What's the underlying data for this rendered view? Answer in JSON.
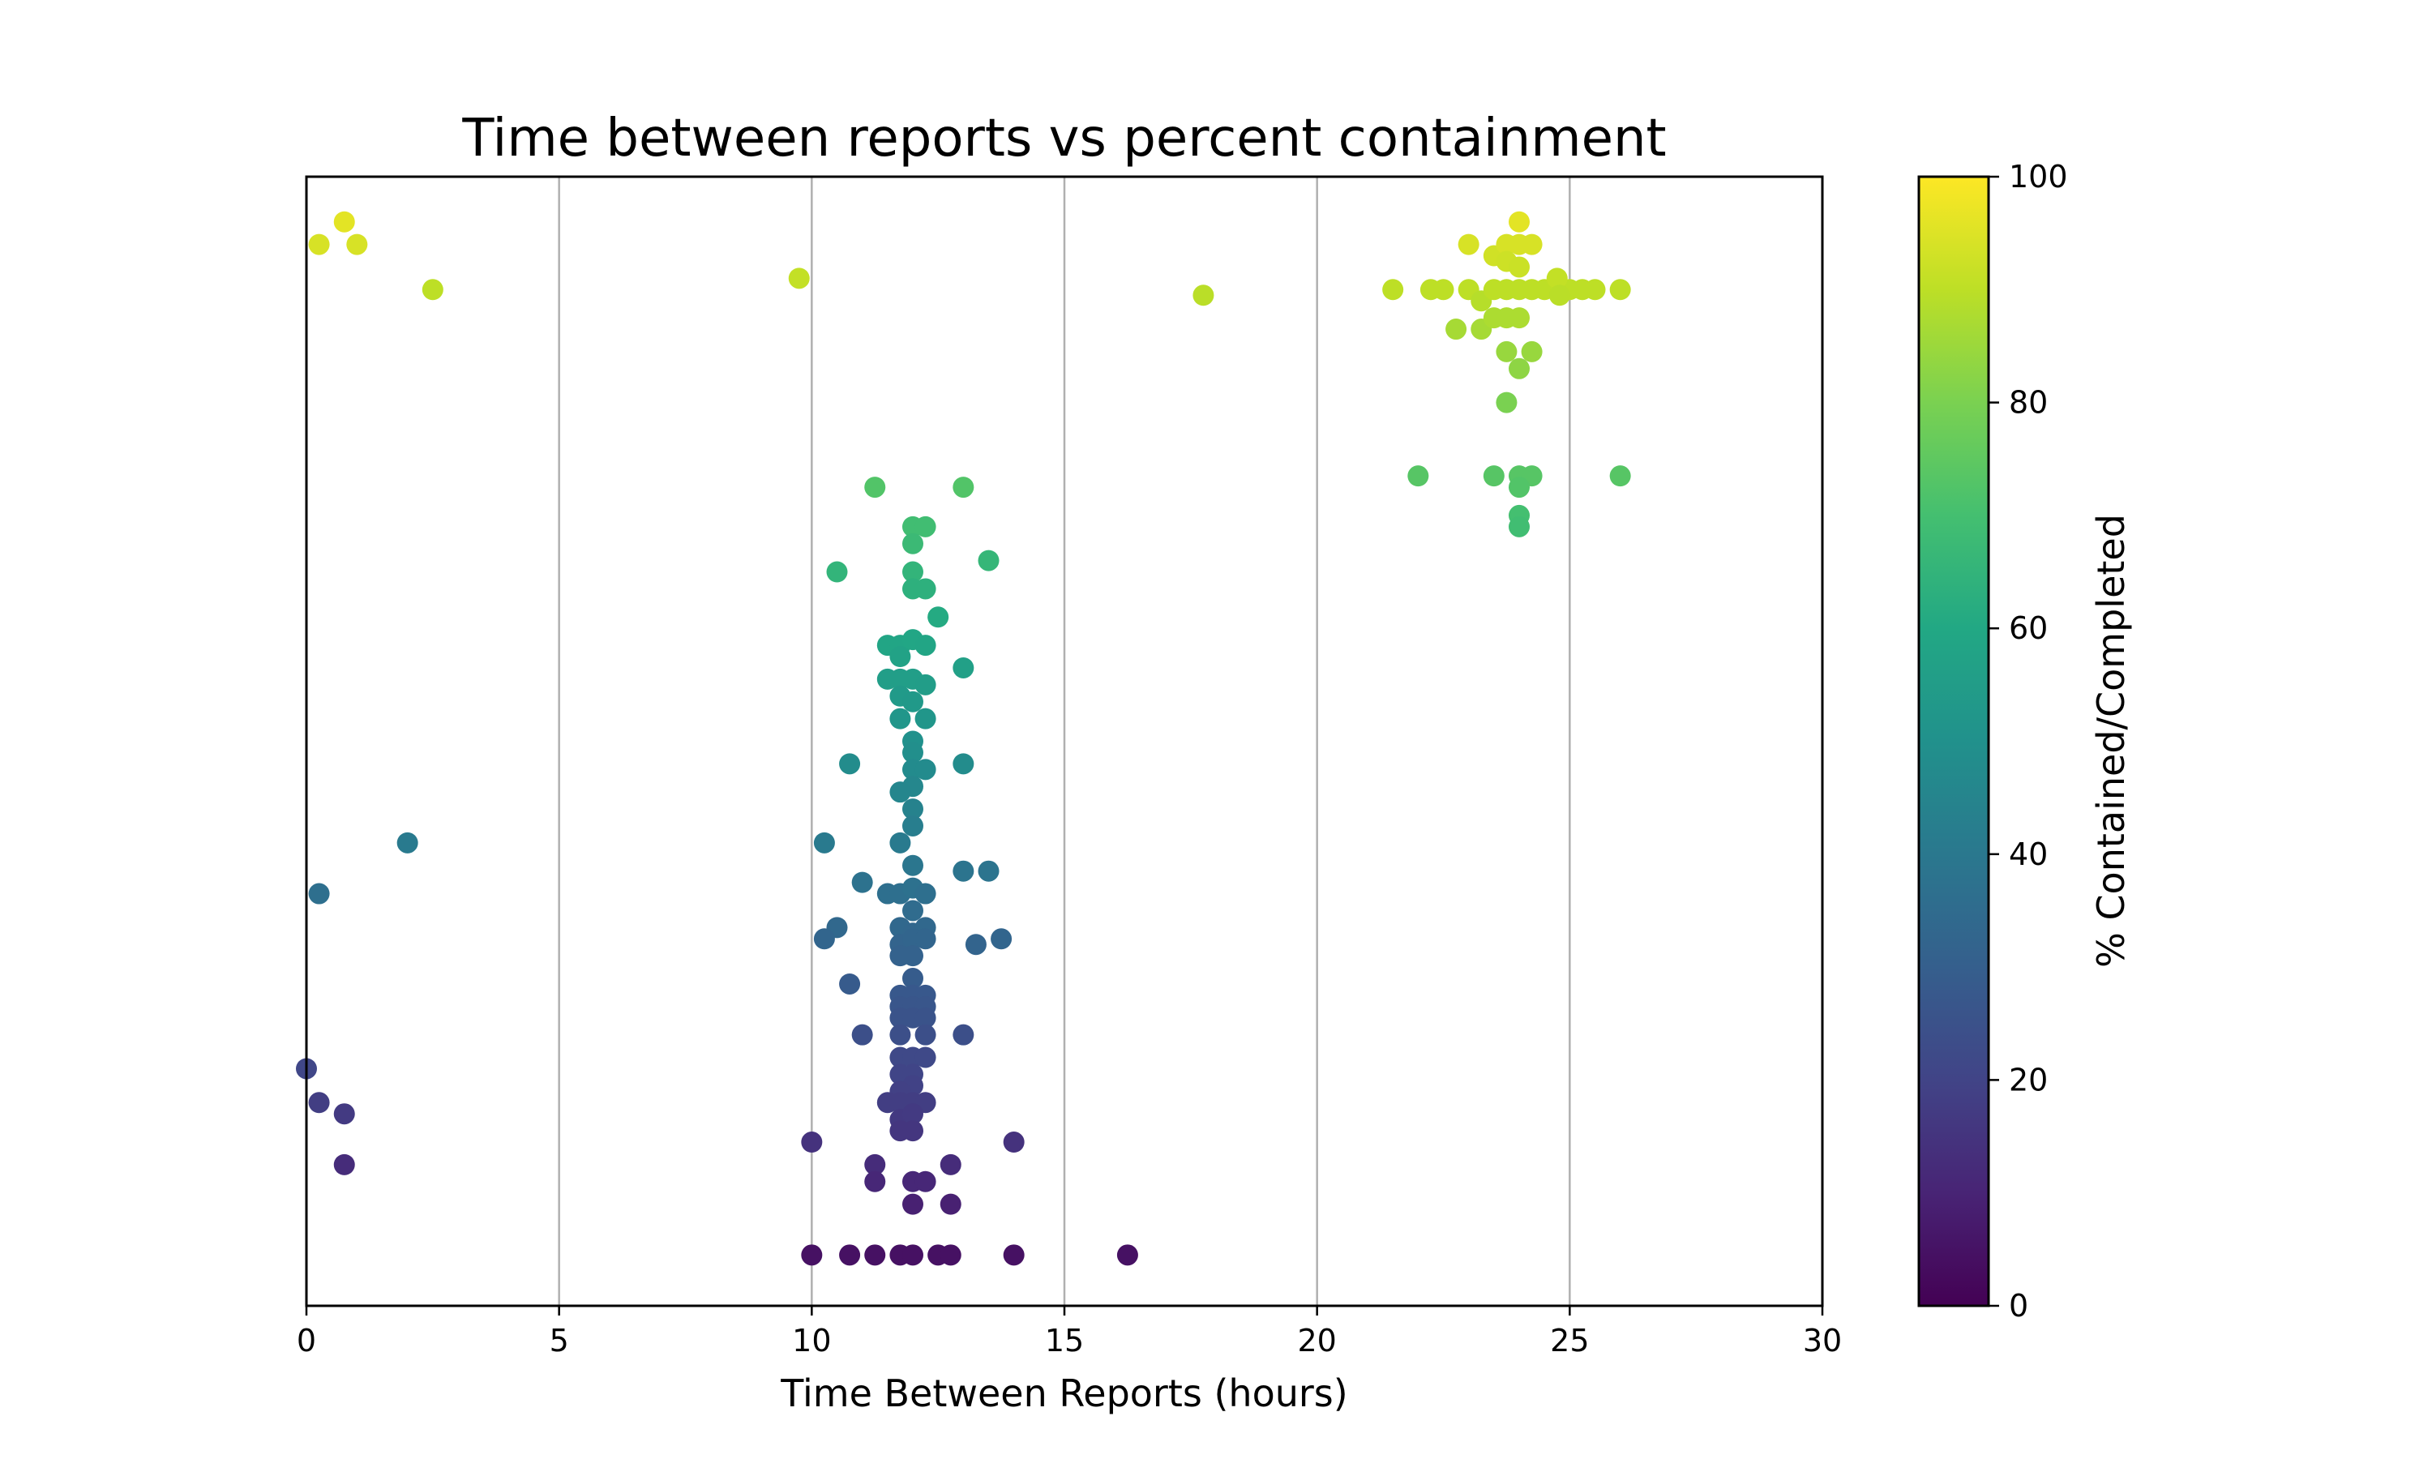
{
  "chart_data": {
    "type": "scatter",
    "title": "Time between reports vs percent containment",
    "xlabel": "Time Between Reports (hours)",
    "ylabel": "",
    "xlim": [
      0,
      30
    ],
    "ylim": [
      0,
      100
    ],
    "x_ticks": [
      "0",
      "5",
      "10",
      "15",
      "20",
      "25",
      "30"
    ],
    "grid": "vertical",
    "colorbar": {
      "label": "% Contained/Completed",
      "range": [
        0,
        100
      ],
      "ticks": [
        "0",
        "20",
        "40",
        "60",
        "80",
        "100"
      ],
      "colormap": "viridis"
    },
    "points": [
      {
        "x": 0.25,
        "y": 94
      },
      {
        "x": 0.75,
        "y": 96
      },
      {
        "x": 1.0,
        "y": 94
      },
      {
        "x": 2.5,
        "y": 90
      },
      {
        "x": 0.25,
        "y": 36.5
      },
      {
        "x": 2.0,
        "y": 41
      },
      {
        "x": 0.0,
        "y": 21
      },
      {
        "x": 0.25,
        "y": 18
      },
      {
        "x": 0.75,
        "y": 17
      },
      {
        "x": 0.75,
        "y": 12.5
      },
      {
        "x": 9.75,
        "y": 91
      },
      {
        "x": 17.75,
        "y": 89.5
      },
      {
        "x": 21.5,
        "y": 90
      },
      {
        "x": 22.25,
        "y": 90
      },
      {
        "x": 22.5,
        "y": 90
      },
      {
        "x": 23.0,
        "y": 90
      },
      {
        "x": 23.25,
        "y": 89
      },
      {
        "x": 23.5,
        "y": 90
      },
      {
        "x": 23.75,
        "y": 90
      },
      {
        "x": 24.0,
        "y": 90
      },
      {
        "x": 24.25,
        "y": 90
      },
      {
        "x": 24.5,
        "y": 90
      },
      {
        "x": 24.75,
        "y": 90
      },
      {
        "x": 25.0,
        "y": 90
      },
      {
        "x": 25.25,
        "y": 90
      },
      {
        "x": 25.5,
        "y": 90
      },
      {
        "x": 26.0,
        "y": 90
      },
      {
        "x": 24.75,
        "y": 91
      },
      {
        "x": 24.8,
        "y": 89.5
      },
      {
        "x": 23.0,
        "y": 94
      },
      {
        "x": 23.5,
        "y": 93
      },
      {
        "x": 23.75,
        "y": 94
      },
      {
        "x": 24.0,
        "y": 96
      },
      {
        "x": 24.0,
        "y": 94
      },
      {
        "x": 24.25,
        "y": 94
      },
      {
        "x": 23.75,
        "y": 92.5
      },
      {
        "x": 24.0,
        "y": 92
      },
      {
        "x": 22.75,
        "y": 86.5
      },
      {
        "x": 23.25,
        "y": 86.5
      },
      {
        "x": 23.5,
        "y": 87.5
      },
      {
        "x": 23.75,
        "y": 87.5
      },
      {
        "x": 24.0,
        "y": 87.5
      },
      {
        "x": 23.75,
        "y": 84.5
      },
      {
        "x": 24.25,
        "y": 84.5
      },
      {
        "x": 24.0,
        "y": 83
      },
      {
        "x": 23.75,
        "y": 80
      },
      {
        "x": 22.0,
        "y": 73.5
      },
      {
        "x": 23.5,
        "y": 73.5
      },
      {
        "x": 24.0,
        "y": 73.5
      },
      {
        "x": 24.25,
        "y": 73.5
      },
      {
        "x": 26.0,
        "y": 73.5
      },
      {
        "x": 24.0,
        "y": 72.5
      },
      {
        "x": 24.0,
        "y": 70
      },
      {
        "x": 24.0,
        "y": 69
      },
      {
        "x": 11.25,
        "y": 72.5
      },
      {
        "x": 13.0,
        "y": 72.5
      },
      {
        "x": 12.0,
        "y": 69
      },
      {
        "x": 12.25,
        "y": 69
      },
      {
        "x": 12.0,
        "y": 67.5
      },
      {
        "x": 10.5,
        "y": 65
      },
      {
        "x": 13.5,
        "y": 66
      },
      {
        "x": 12.0,
        "y": 65
      },
      {
        "x": 12.0,
        "y": 63.5
      },
      {
        "x": 12.25,
        "y": 63.5
      },
      {
        "x": 12.5,
        "y": 61
      },
      {
        "x": 11.5,
        "y": 58.5
      },
      {
        "x": 11.75,
        "y": 58.5
      },
      {
        "x": 12.0,
        "y": 59
      },
      {
        "x": 12.25,
        "y": 58.5
      },
      {
        "x": 11.75,
        "y": 57.5
      },
      {
        "x": 13.0,
        "y": 56.5
      },
      {
        "x": 11.5,
        "y": 55.5
      },
      {
        "x": 11.75,
        "y": 55.5
      },
      {
        "x": 12.0,
        "y": 55.5
      },
      {
        "x": 12.25,
        "y": 55
      },
      {
        "x": 11.75,
        "y": 54
      },
      {
        "x": 12.0,
        "y": 53.5
      },
      {
        "x": 11.75,
        "y": 52
      },
      {
        "x": 12.25,
        "y": 52
      },
      {
        "x": 12.0,
        "y": 50
      },
      {
        "x": 12.0,
        "y": 49
      },
      {
        "x": 10.75,
        "y": 48
      },
      {
        "x": 13.0,
        "y": 48
      },
      {
        "x": 12.0,
        "y": 47.5
      },
      {
        "x": 12.25,
        "y": 47.5
      },
      {
        "x": 12.0,
        "y": 46
      },
      {
        "x": 11.75,
        "y": 45.5
      },
      {
        "x": 12.0,
        "y": 44
      },
      {
        "x": 12.0,
        "y": 42.5
      },
      {
        "x": 10.25,
        "y": 41
      },
      {
        "x": 11.75,
        "y": 41
      },
      {
        "x": 12.0,
        "y": 39
      },
      {
        "x": 13.0,
        "y": 38.5
      },
      {
        "x": 13.5,
        "y": 38.5
      },
      {
        "x": 11.0,
        "y": 37.5
      },
      {
        "x": 11.5,
        "y": 36.5
      },
      {
        "x": 11.75,
        "y": 36.5
      },
      {
        "x": 12.0,
        "y": 37
      },
      {
        "x": 12.25,
        "y": 36.5
      },
      {
        "x": 12.0,
        "y": 35
      },
      {
        "x": 10.5,
        "y": 33.5
      },
      {
        "x": 10.25,
        "y": 32.5
      },
      {
        "x": 11.75,
        "y": 33.5
      },
      {
        "x": 12.0,
        "y": 33
      },
      {
        "x": 12.25,
        "y": 33.5
      },
      {
        "x": 11.75,
        "y": 32
      },
      {
        "x": 12.0,
        "y": 32.5
      },
      {
        "x": 12.25,
        "y": 32.5
      },
      {
        "x": 11.75,
        "y": 31
      },
      {
        "x": 12.0,
        "y": 31
      },
      {
        "x": 13.25,
        "y": 32
      },
      {
        "x": 13.75,
        "y": 32.5
      },
      {
        "x": 12.0,
        "y": 29
      },
      {
        "x": 10.75,
        "y": 28.5
      },
      {
        "x": 11.75,
        "y": 27.5
      },
      {
        "x": 12.0,
        "y": 27.5
      },
      {
        "x": 12.25,
        "y": 27.5
      },
      {
        "x": 11.75,
        "y": 26.5
      },
      {
        "x": 12.0,
        "y": 26.5
      },
      {
        "x": 12.25,
        "y": 26.5
      },
      {
        "x": 11.75,
        "y": 25.5
      },
      {
        "x": 12.0,
        "y": 25.5
      },
      {
        "x": 12.25,
        "y": 25.5
      },
      {
        "x": 11.0,
        "y": 24
      },
      {
        "x": 11.75,
        "y": 24
      },
      {
        "x": 12.25,
        "y": 24
      },
      {
        "x": 13.0,
        "y": 24
      },
      {
        "x": 11.75,
        "y": 22
      },
      {
        "x": 12.0,
        "y": 22
      },
      {
        "x": 12.25,
        "y": 22
      },
      {
        "x": 11.75,
        "y": 20.5
      },
      {
        "x": 12.0,
        "y": 20.5
      },
      {
        "x": 12.0,
        "y": 19.5
      },
      {
        "x": 11.75,
        "y": 19
      },
      {
        "x": 11.5,
        "y": 18
      },
      {
        "x": 11.75,
        "y": 18
      },
      {
        "x": 12.0,
        "y": 18
      },
      {
        "x": 12.25,
        "y": 18
      },
      {
        "x": 11.75,
        "y": 16.5
      },
      {
        "x": 12.0,
        "y": 17
      },
      {
        "x": 11.75,
        "y": 15.5
      },
      {
        "x": 12.0,
        "y": 15.5
      },
      {
        "x": 10.0,
        "y": 14.5
      },
      {
        "x": 14.0,
        "y": 14.5
      },
      {
        "x": 11.25,
        "y": 12.5
      },
      {
        "x": 12.75,
        "y": 12.5
      },
      {
        "x": 11.25,
        "y": 11
      },
      {
        "x": 12.0,
        "y": 11
      },
      {
        "x": 12.25,
        "y": 11
      },
      {
        "x": 12.0,
        "y": 9
      },
      {
        "x": 12.75,
        "y": 9
      },
      {
        "x": 10.0,
        "y": 4.5
      },
      {
        "x": 10.75,
        "y": 4.5
      },
      {
        "x": 11.25,
        "y": 4.5
      },
      {
        "x": 11.75,
        "y": 4.5
      },
      {
        "x": 12.0,
        "y": 4.5
      },
      {
        "x": 12.5,
        "y": 4.5
      },
      {
        "x": 12.75,
        "y": 4.5
      },
      {
        "x": 14.0,
        "y": 4.5
      },
      {
        "x": 16.25,
        "y": 4.5
      }
    ]
  }
}
